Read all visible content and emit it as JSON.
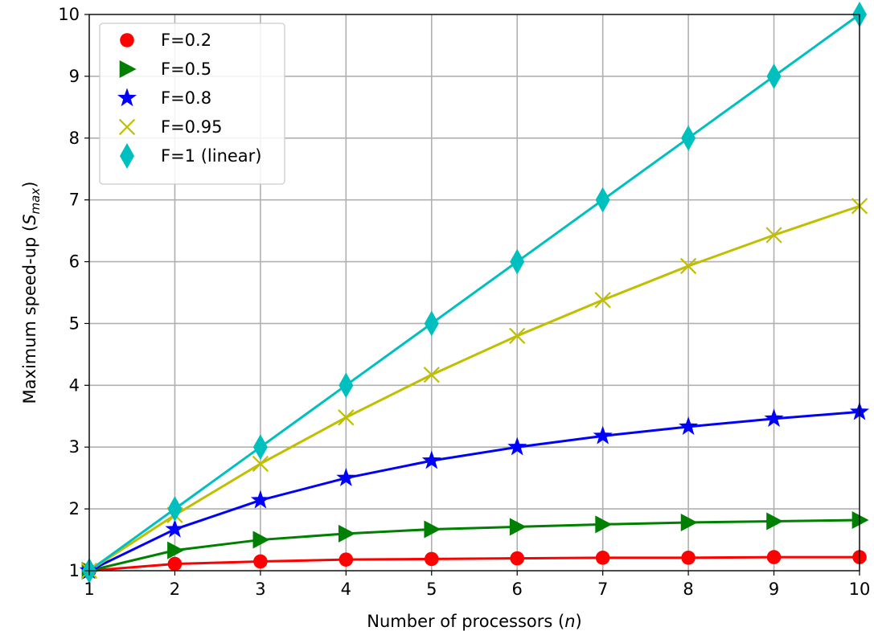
{
  "chart_data": {
    "type": "line",
    "xlabel": "Number of processors (n)",
    "ylabel": "Maximum speed-up (S_max)",
    "xlabel_parts": {
      "prefix": "Number of processors (",
      "var": "n",
      "suffix": ")"
    },
    "ylabel_parts": {
      "prefix": "Maximum speed-up (",
      "var": "S",
      "sub": "max",
      "suffix": ")"
    },
    "xlim": [
      1,
      10
    ],
    "ylim": [
      1,
      10
    ],
    "xticks": [
      "1",
      "2",
      "3",
      "4",
      "5",
      "6",
      "7",
      "8",
      "9",
      "10"
    ],
    "yticks": [
      "1",
      "2",
      "3",
      "4",
      "5",
      "6",
      "7",
      "8",
      "9",
      "10"
    ],
    "grid": true,
    "legend_position": "top-left",
    "x": [
      1,
      2,
      3,
      4,
      5,
      6,
      7,
      8,
      9,
      10
    ],
    "series": [
      {
        "name": "F=0.2",
        "color": "#ff0000",
        "marker": "circle",
        "values": [
          1.0,
          1.11,
          1.15,
          1.18,
          1.19,
          1.2,
          1.21,
          1.21,
          1.22,
          1.22
        ]
      },
      {
        "name": "F=0.5",
        "color": "#008000",
        "marker": "triangle-right",
        "values": [
          1.0,
          1.33,
          1.5,
          1.6,
          1.67,
          1.71,
          1.75,
          1.78,
          1.8,
          1.82
        ]
      },
      {
        "name": "F=0.8",
        "color": "#0000ff",
        "marker": "star",
        "values": [
          1.0,
          1.67,
          2.14,
          2.5,
          2.78,
          3.0,
          3.18,
          3.33,
          3.46,
          3.57
        ]
      },
      {
        "name": "F=0.95",
        "color": "#bfbf00",
        "marker": "x",
        "values": [
          1.0,
          1.9,
          2.73,
          3.48,
          4.17,
          4.8,
          5.38,
          5.93,
          6.43,
          6.9
        ]
      },
      {
        "name": "F=1 (linear)",
        "color": "#00bfbf",
        "marker": "thin-diamond",
        "values": [
          1,
          2,
          3,
          4,
          5,
          6,
          7,
          8,
          9,
          10
        ]
      }
    ]
  }
}
